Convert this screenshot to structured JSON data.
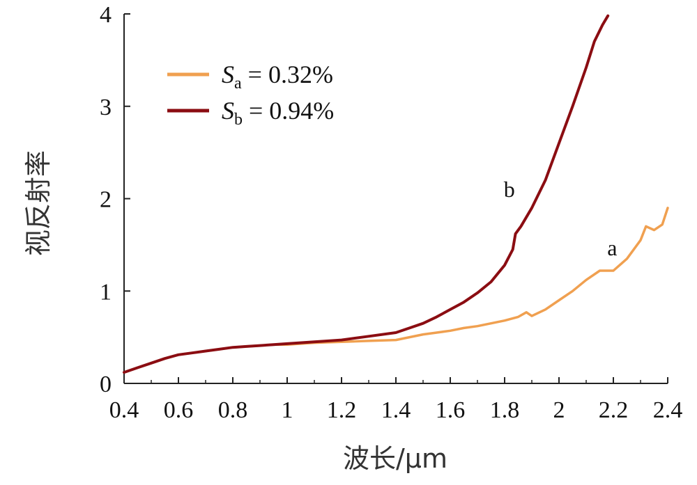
{
  "chart_data": {
    "type": "line",
    "xlabel": "波长/μm",
    "ylabel": "视反射率",
    "xlim": [
      0.4,
      2.4
    ],
    "ylim": [
      0,
      4
    ],
    "x_ticks": [
      "0.4",
      "0.6",
      "0.8",
      "1",
      "1.2",
      "1.4",
      "1.6",
      "1.8",
      "2",
      "2.2",
      "2.4"
    ],
    "y_ticks": [
      "0",
      "1",
      "2",
      "3",
      "4"
    ],
    "grid": false,
    "legend_position": "top-left",
    "series": [
      {
        "name": "Sa = 0.32%",
        "legend_symbol": "S",
        "legend_subscript": "a",
        "legend_value": " = 0.32%",
        "curve_label": "a",
        "color": "#f0a050",
        "points": [
          [
            0.4,
            0.12
          ],
          [
            0.45,
            0.17
          ],
          [
            0.5,
            0.22
          ],
          [
            0.55,
            0.27
          ],
          [
            0.6,
            0.31
          ],
          [
            0.65,
            0.33
          ],
          [
            0.7,
            0.35
          ],
          [
            0.75,
            0.37
          ],
          [
            0.8,
            0.39
          ],
          [
            0.85,
            0.4
          ],
          [
            0.9,
            0.41
          ],
          [
            0.95,
            0.42
          ],
          [
            1.0,
            0.42
          ],
          [
            1.1,
            0.44
          ],
          [
            1.2,
            0.45
          ],
          [
            1.3,
            0.46
          ],
          [
            1.4,
            0.47
          ],
          [
            1.45,
            0.5
          ],
          [
            1.5,
            0.53
          ],
          [
            1.55,
            0.55
          ],
          [
            1.6,
            0.57
          ],
          [
            1.65,
            0.6
          ],
          [
            1.7,
            0.62
          ],
          [
            1.75,
            0.65
          ],
          [
            1.8,
            0.68
          ],
          [
            1.85,
            0.72
          ],
          [
            1.88,
            0.77
          ],
          [
            1.9,
            0.73
          ],
          [
            1.95,
            0.8
          ],
          [
            2.0,
            0.9
          ],
          [
            2.05,
            1.0
          ],
          [
            2.1,
            1.12
          ],
          [
            2.15,
            1.22
          ],
          [
            2.2,
            1.22
          ],
          [
            2.25,
            1.35
          ],
          [
            2.3,
            1.55
          ],
          [
            2.32,
            1.7
          ],
          [
            2.35,
            1.66
          ],
          [
            2.38,
            1.72
          ],
          [
            2.4,
            1.9
          ]
        ]
      },
      {
        "name": "Sb = 0.94%",
        "legend_symbol": "S",
        "legend_subscript": "b",
        "legend_value": " = 0.94%",
        "curve_label": "b",
        "color": "#8b0d12",
        "points": [
          [
            0.4,
            0.12
          ],
          [
            0.45,
            0.17
          ],
          [
            0.5,
            0.22
          ],
          [
            0.55,
            0.27
          ],
          [
            0.6,
            0.31
          ],
          [
            0.65,
            0.33
          ],
          [
            0.7,
            0.35
          ],
          [
            0.75,
            0.37
          ],
          [
            0.8,
            0.39
          ],
          [
            0.85,
            0.4
          ],
          [
            0.9,
            0.41
          ],
          [
            0.95,
            0.42
          ],
          [
            1.0,
            0.43
          ],
          [
            1.1,
            0.45
          ],
          [
            1.2,
            0.47
          ],
          [
            1.3,
            0.51
          ],
          [
            1.4,
            0.55
          ],
          [
            1.45,
            0.6
          ],
          [
            1.5,
            0.65
          ],
          [
            1.55,
            0.72
          ],
          [
            1.6,
            0.8
          ],
          [
            1.65,
            0.88
          ],
          [
            1.7,
            0.98
          ],
          [
            1.75,
            1.1
          ],
          [
            1.8,
            1.28
          ],
          [
            1.83,
            1.45
          ],
          [
            1.84,
            1.62
          ],
          [
            1.86,
            1.7
          ],
          [
            1.9,
            1.9
          ],
          [
            1.95,
            2.2
          ],
          [
            2.0,
            2.6
          ],
          [
            2.05,
            3.0
          ],
          [
            2.1,
            3.42
          ],
          [
            2.13,
            3.7
          ],
          [
            2.16,
            3.88
          ],
          [
            2.18,
            3.98
          ]
        ]
      }
    ]
  }
}
